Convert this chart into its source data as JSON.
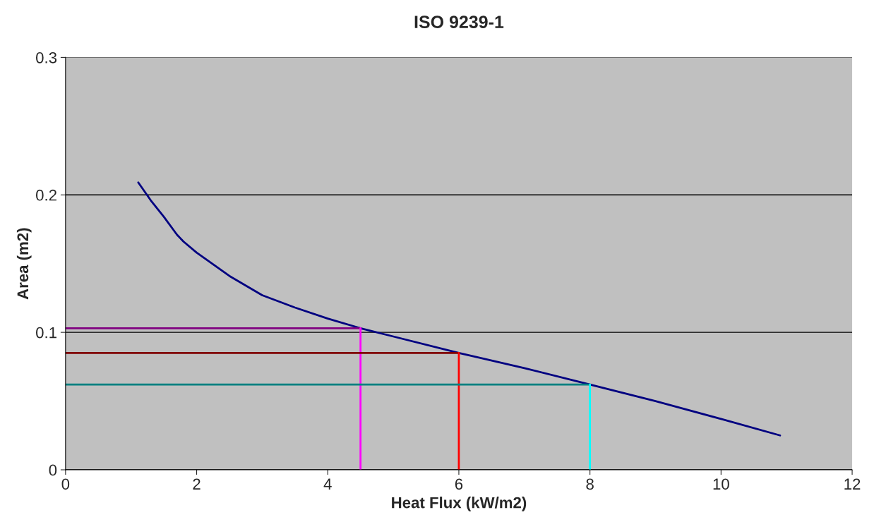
{
  "chart_data": {
    "type": "line",
    "title": "ISO 9239-1",
    "xlabel": "Heat Flux (kW/m2)",
    "ylabel": "Area (m2)",
    "xlim": [
      0,
      12
    ],
    "xticks": [
      0,
      2,
      4,
      6,
      8,
      10,
      12
    ],
    "ylim": [
      0,
      0.3
    ],
    "yticks": [
      0,
      0.1,
      0.2,
      0.3
    ],
    "grid": "y",
    "legend": false,
    "series": [
      {
        "color": "#000080",
        "x": [
          1.11,
          1.3,
          1.5,
          1.7,
          1.8,
          2,
          2.5,
          3,
          3.5,
          4,
          4.5,
          5,
          6,
          7,
          8,
          9,
          10,
          10.9
        ],
        "values": [
          0.209,
          0.196,
          0.184,
          0.171,
          0.166,
          0.158,
          0.141,
          0.127,
          0.118,
          0.11,
          0.103,
          0.097,
          0.085,
          0.074,
          0.062,
          0.05,
          0.037,
          0.025
        ]
      },
      {
        "color": "#800080",
        "x": [
          0,
          4.5
        ],
        "values": [
          0.103,
          0.103
        ]
      },
      {
        "color": "#ff00ff",
        "x": [
          4.5,
          4.5
        ],
        "values": [
          0,
          0.103
        ]
      },
      {
        "color": "#800000",
        "x": [
          0,
          6
        ],
        "values": [
          0.085,
          0.085
        ]
      },
      {
        "color": "#ff0000",
        "x": [
          6,
          6
        ],
        "values": [
          0,
          0.085
        ]
      },
      {
        "color": "#008080",
        "x": [
          0,
          8
        ],
        "values": [
          0.062,
          0.062
        ]
      },
      {
        "color": "#00ffff",
        "x": [
          8,
          8
        ],
        "values": [
          0,
          0.062
        ]
      }
    ]
  }
}
